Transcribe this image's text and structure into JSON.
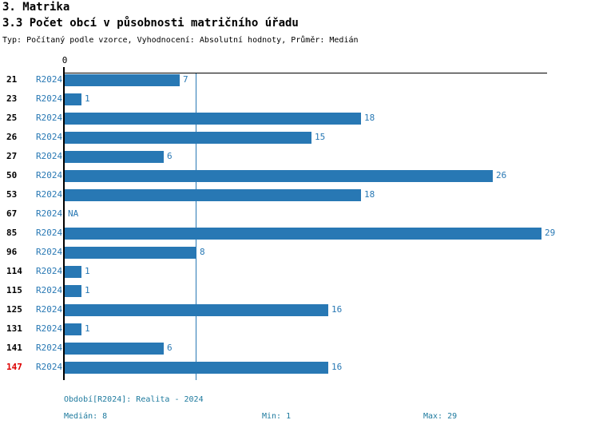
{
  "header": {
    "title": "3. Matrika",
    "subtitle": "3.3 Počet obcí v působnosti matričního úřadu",
    "meta": "Typ: Počítaný podle vzorce, Vyhodnocení: Absolutní hodnoty, Průměr: Medián"
  },
  "chart_data": {
    "type": "bar",
    "orientation": "horizontal",
    "title": "3.3 Počet obcí v působnosti matričního úřadu",
    "series_label": "R2024",
    "categories": [
      "21",
      "23",
      "25",
      "26",
      "27",
      "50",
      "53",
      "67",
      "85",
      "96",
      "114",
      "115",
      "125",
      "131",
      "141",
      "147"
    ],
    "values": [
      7,
      1,
      18,
      15,
      6,
      26,
      18,
      null,
      29,
      8,
      1,
      1,
      16,
      1,
      6,
      16
    ],
    "value_labels": [
      "7",
      "1",
      "18",
      "15",
      "6",
      "26",
      "18",
      "NA",
      "29",
      "8",
      "1",
      "1",
      "16",
      "1",
      "6",
      "16"
    ],
    "na_label": "NA",
    "highlighted_category": "147",
    "axis_zero_label": "0",
    "xlim": [
      0,
      29.4
    ],
    "median_reference_line": 8,
    "grid": false,
    "legend": false
  },
  "footer": {
    "period": "Období[R2024]: Realita - 2024",
    "median": "Medián: 8",
    "min": "Min: 1",
    "max": "Max: 29"
  },
  "colors": {
    "bar": "#2878b4",
    "median_line": "#2878b4",
    "series_label": "#2878b4",
    "value_label": "#2878b4",
    "footer_text": "#1e7a9e",
    "highlight_category": "#dd0000",
    "axis": "#000000"
  }
}
